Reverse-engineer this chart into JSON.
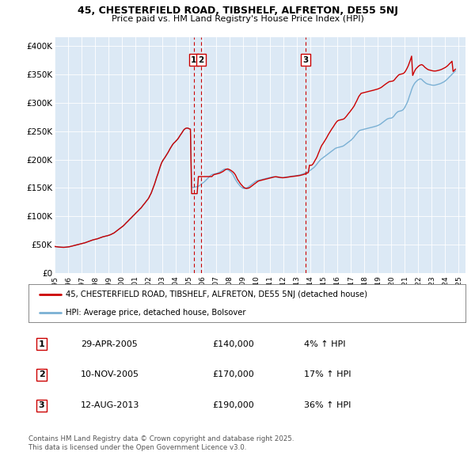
{
  "title1": "45, CHESTERFIELD ROAD, TIBSHELF, ALFRETON, DE55 5NJ",
  "title2": "Price paid vs. HM Land Registry's House Price Index (HPI)",
  "ylabel_ticks": [
    "£0",
    "£50K",
    "£100K",
    "£150K",
    "£200K",
    "£250K",
    "£300K",
    "£350K",
    "£400K"
  ],
  "ytick_vals": [
    0,
    50000,
    100000,
    150000,
    200000,
    250000,
    300000,
    350000,
    400000
  ],
  "ylim": [
    0,
    415000
  ],
  "xlim_start": 1995.0,
  "xlim_end": 2025.5,
  "bg_color": "#dce9f5",
  "red_line_color": "#cc0000",
  "blue_line_color": "#7ab0d4",
  "legend_label_red": "45, CHESTERFIELD ROAD, TIBSHELF, ALFRETON, DE55 5NJ (detached house)",
  "legend_label_blue": "HPI: Average price, detached house, Bolsover",
  "transactions": [
    {
      "num": 1,
      "date_str": "29-APR-2005",
      "price": 140000,
      "pct": "4%",
      "year": 2005.33
    },
    {
      "num": 2,
      "date_str": "10-NOV-2005",
      "price": 170000,
      "pct": "17%",
      "year": 2005.87
    },
    {
      "num": 3,
      "date_str": "12-AUG-2013",
      "price": 190000,
      "pct": "36%",
      "year": 2013.62
    }
  ],
  "footer1": "Contains HM Land Registry data © Crown copyright and database right 2025.",
  "footer2": "This data is licensed under the Open Government Licence v3.0.",
  "hpi_years": [
    1995.0,
    1995.08,
    1995.17,
    1995.25,
    1995.33,
    1995.42,
    1995.5,
    1995.58,
    1995.67,
    1995.75,
    1995.83,
    1995.92,
    1996.0,
    1996.08,
    1996.17,
    1996.25,
    1996.33,
    1996.42,
    1996.5,
    1996.58,
    1996.67,
    1996.75,
    1996.83,
    1996.92,
    1997.0,
    1997.08,
    1997.17,
    1997.25,
    1997.33,
    1997.42,
    1997.5,
    1997.58,
    1997.67,
    1997.75,
    1997.83,
    1997.92,
    1998.0,
    1998.08,
    1998.17,
    1998.25,
    1998.33,
    1998.42,
    1998.5,
    1998.58,
    1998.67,
    1998.75,
    1998.83,
    1998.92,
    1999.0,
    1999.08,
    1999.17,
    1999.25,
    1999.33,
    1999.42,
    1999.5,
    1999.58,
    1999.67,
    1999.75,
    1999.83,
    1999.92,
    2000.0,
    2000.08,
    2000.17,
    2000.25,
    2000.33,
    2000.42,
    2000.5,
    2000.58,
    2000.67,
    2000.75,
    2000.83,
    2000.92,
    2001.0,
    2001.08,
    2001.17,
    2001.25,
    2001.33,
    2001.42,
    2001.5,
    2001.58,
    2001.67,
    2001.75,
    2001.83,
    2001.92,
    2002.0,
    2002.08,
    2002.17,
    2002.25,
    2002.33,
    2002.42,
    2002.5,
    2002.58,
    2002.67,
    2002.75,
    2002.83,
    2002.92,
    2003.0,
    2003.08,
    2003.17,
    2003.25,
    2003.33,
    2003.42,
    2003.5,
    2003.58,
    2003.67,
    2003.75,
    2003.83,
    2003.92,
    2004.0,
    2004.08,
    2004.17,
    2004.25,
    2004.33,
    2004.42,
    2004.5,
    2004.58,
    2004.67,
    2004.75,
    2004.83,
    2004.92,
    2005.0,
    2005.08,
    2005.17,
    2005.25,
    2005.33,
    2005.42,
    2005.5,
    2005.58,
    2005.67,
    2005.75,
    2005.83,
    2005.92,
    2006.0,
    2006.08,
    2006.17,
    2006.25,
    2006.33,
    2006.42,
    2006.5,
    2006.58,
    2006.67,
    2006.75,
    2006.83,
    2006.92,
    2007.0,
    2007.08,
    2007.17,
    2007.25,
    2007.33,
    2007.42,
    2007.5,
    2007.58,
    2007.67,
    2007.75,
    2007.83,
    2007.92,
    2008.0,
    2008.08,
    2008.17,
    2008.25,
    2008.33,
    2008.42,
    2008.5,
    2008.58,
    2008.67,
    2008.75,
    2008.83,
    2008.92,
    2009.0,
    2009.08,
    2009.17,
    2009.25,
    2009.33,
    2009.42,
    2009.5,
    2009.58,
    2009.67,
    2009.75,
    2009.83,
    2009.92,
    2010.0,
    2010.08,
    2010.17,
    2010.25,
    2010.33,
    2010.42,
    2010.5,
    2010.58,
    2010.67,
    2010.75,
    2010.83,
    2010.92,
    2011.0,
    2011.08,
    2011.17,
    2011.25,
    2011.33,
    2011.42,
    2011.5,
    2011.58,
    2011.67,
    2011.75,
    2011.83,
    2011.92,
    2012.0,
    2012.08,
    2012.17,
    2012.25,
    2012.33,
    2012.42,
    2012.5,
    2012.58,
    2012.67,
    2012.75,
    2012.83,
    2012.92,
    2013.0,
    2013.08,
    2013.17,
    2013.25,
    2013.33,
    2013.42,
    2013.5,
    2013.58,
    2013.67,
    2013.75,
    2013.83,
    2013.92,
    2014.0,
    2014.08,
    2014.17,
    2014.25,
    2014.33,
    2014.42,
    2014.5,
    2014.58,
    2014.67,
    2014.75,
    2014.83,
    2014.92,
    2015.0,
    2015.08,
    2015.17,
    2015.25,
    2015.33,
    2015.42,
    2015.5,
    2015.58,
    2015.67,
    2015.75,
    2015.83,
    2015.92,
    2016.0,
    2016.08,
    2016.17,
    2016.25,
    2016.33,
    2016.42,
    2016.5,
    2016.58,
    2016.67,
    2016.75,
    2016.83,
    2016.92,
    2017.0,
    2017.08,
    2017.17,
    2017.25,
    2017.33,
    2017.42,
    2017.5,
    2017.58,
    2017.67,
    2017.75,
    2017.83,
    2017.92,
    2018.0,
    2018.08,
    2018.17,
    2018.25,
    2018.33,
    2018.42,
    2018.5,
    2018.58,
    2018.67,
    2018.75,
    2018.83,
    2018.92,
    2019.0,
    2019.08,
    2019.17,
    2019.25,
    2019.33,
    2019.42,
    2019.5,
    2019.58,
    2019.67,
    2019.75,
    2019.83,
    2019.92,
    2020.0,
    2020.08,
    2020.17,
    2020.25,
    2020.33,
    2020.42,
    2020.5,
    2020.58,
    2020.67,
    2020.75,
    2020.83,
    2020.92,
    2021.0,
    2021.08,
    2021.17,
    2021.25,
    2021.33,
    2021.42,
    2021.5,
    2021.58,
    2021.67,
    2021.75,
    2021.83,
    2021.92,
    2022.0,
    2022.08,
    2022.17,
    2022.25,
    2022.33,
    2022.42,
    2022.5,
    2022.58,
    2022.67,
    2022.75,
    2022.83,
    2022.92,
    2023.0,
    2023.08,
    2023.17,
    2023.25,
    2023.33,
    2023.42,
    2023.5,
    2023.58,
    2023.67,
    2023.75,
    2023.83,
    2023.92,
    2024.0,
    2024.08,
    2024.17,
    2024.25,
    2024.33,
    2024.42,
    2024.5,
    2024.58,
    2024.67,
    2024.75,
    2024.83,
    2024.92
  ],
  "hpi_vals": [
    47000,
    46800,
    46500,
    46200,
    46000,
    45800,
    45700,
    45600,
    45500,
    45600,
    45800,
    46000,
    46200,
    46500,
    47000,
    47500,
    48000,
    48500,
    49000,
    49500,
    50000,
    50500,
    51000,
    51500,
    52000,
    52500,
    53000,
    53500,
    54200,
    55000,
    55800,
    56500,
    57200,
    58000,
    58500,
    59000,
    59500,
    60000,
    60500,
    61200,
    62000,
    62800,
    63500,
    64000,
    64500,
    65000,
    65500,
    66000,
    66500,
    67200,
    68000,
    69000,
    70000,
    71000,
    72500,
    74000,
    75500,
    77000,
    78500,
    80000,
    81500,
    83000,
    85000,
    87000,
    89000,
    91000,
    93000,
    95000,
    97000,
    99000,
    101000,
    103000,
    105000,
    107000,
    109000,
    111000,
    113000,
    115000,
    117500,
    120000,
    122500,
    125000,
    127500,
    130000,
    133000,
    137000,
    141000,
    146000,
    151000,
    157000,
    163000,
    169000,
    175000,
    181000,
    187000,
    193000,
    197000,
    200000,
    203000,
    206000,
    209000,
    212500,
    216000,
    219500,
    223000,
    226000,
    228500,
    230500,
    232500,
    234500,
    237000,
    240000,
    243000,
    246000,
    249000,
    252000,
    254000,
    255000,
    255500,
    255000,
    254000,
    253500,
    152000,
    151000,
    151000,
    151500,
    152000,
    152500,
    153000,
    154000,
    155500,
    157000,
    158500,
    160000,
    162000,
    164000,
    166000,
    168000,
    170000,
    172000,
    173500,
    174000,
    174500,
    175000,
    175500,
    176000,
    177000,
    178000,
    179000,
    180500,
    182000,
    183000,
    183500,
    183000,
    182000,
    181000,
    179500,
    178000,
    176000,
    173000,
    169000,
    165000,
    162000,
    159000,
    156500,
    154000,
    152000,
    150500,
    149500,
    149000,
    149500,
    150000,
    151000,
    152500,
    154000,
    155500,
    157000,
    158500,
    160000,
    161500,
    162500,
    163000,
    163500,
    164000,
    164500,
    165000,
    165500,
    166000,
    166500,
    167000,
    167500,
    168000,
    168500,
    169000,
    169500,
    169800,
    169600,
    169200,
    168800,
    168500,
    168200,
    168000,
    168000,
    168200,
    168500,
    168800,
    169200,
    169500,
    169800,
    170000,
    170200,
    170500,
    170800,
    171000,
    171200,
    171500,
    171800,
    172200,
    172700,
    173200,
    173800,
    174500,
    175300,
    176200,
    177000,
    177800,
    178800,
    180000,
    181500,
    183000,
    184500,
    186000,
    188000,
    190500,
    193000,
    195500,
    198000,
    200000,
    201500,
    203000,
    204500,
    206000,
    207500,
    209000,
    210500,
    212000,
    213500,
    215000,
    216500,
    218000,
    219500,
    220500,
    221000,
    221500,
    222000,
    222500,
    223000,
    223800,
    225000,
    226500,
    228000,
    229500,
    231000,
    232500,
    234000,
    236000,
    238000,
    240500,
    243000,
    245500,
    248000,
    250000,
    251500,
    252000,
    252500,
    253000,
    253500,
    254000,
    254500,
    255000,
    255500,
    256000,
    256500,
    257000,
    257500,
    258000,
    258500,
    259200,
    260000,
    261000,
    262000,
    263500,
    265000,
    266500,
    268000,
    269500,
    271000,
    272000,
    272500,
    272800,
    273000,
    274000,
    276000,
    278500,
    281000,
    283000,
    284500,
    285000,
    285500,
    286000,
    287000,
    289000,
    292000,
    296000,
    300000,
    305000,
    311000,
    317000,
    323000,
    328000,
    332000,
    335000,
    337000,
    339000,
    340500,
    341500,
    342000,
    341000,
    339000,
    337000,
    335500,
    334000,
    333000,
    332500,
    332000,
    331500,
    331000,
    330800,
    330800,
    331000,
    331500,
    332000,
    332500,
    333200,
    334000,
    335000,
    336000,
    337000,
    338500,
    340000,
    342000,
    344000,
    346000,
    348000,
    350000,
    352000,
    354000,
    356000
  ],
  "red_vals": [
    47000,
    46800,
    46500,
    46200,
    46000,
    45800,
    45700,
    45600,
    45500,
    45600,
    45800,
    46000,
    46200,
    46500,
    47000,
    47500,
    48000,
    48500,
    49000,
    49500,
    50000,
    50500,
    51000,
    51500,
    52000,
    52500,
    53000,
    53500,
    54200,
    55000,
    55800,
    56500,
    57200,
    58000,
    58500,
    59000,
    59500,
    60000,
    60500,
    61200,
    62000,
    62800,
    63500,
    64000,
    64500,
    65000,
    65500,
    66000,
    66500,
    67200,
    68000,
    69000,
    70000,
    71000,
    72500,
    74000,
    75500,
    77000,
    78500,
    80000,
    81500,
    83000,
    85000,
    87000,
    89000,
    91000,
    93000,
    95000,
    97000,
    99000,
    101000,
    103000,
    105000,
    107000,
    109000,
    111000,
    113000,
    115000,
    117500,
    120000,
    122500,
    125000,
    127500,
    130000,
    133000,
    137000,
    141000,
    146000,
    151000,
    157000,
    163000,
    169000,
    175000,
    181000,
    187000,
    193000,
    197000,
    200000,
    203000,
    206000,
    209000,
    212500,
    216000,
    219500,
    223000,
    226000,
    228500,
    230500,
    232500,
    234500,
    237000,
    240000,
    243000,
    246000,
    249000,
    252000,
    254000,
    255000,
    255500,
    255000,
    254000,
    253500,
    140000,
    140000,
    140000,
    140000,
    140000,
    140000,
    170000,
    170000,
    170000,
    170000,
    170000,
    170000,
    170000,
    170000,
    170000,
    170000,
    170000,
    170000,
    170000,
    172000,
    173500,
    174000,
    174500,
    175000,
    175500,
    176000,
    177000,
    178000,
    179000,
    180500,
    182000,
    183000,
    183500,
    183000,
    182000,
    181000,
    179500,
    178000,
    176000,
    173000,
    169000,
    165000,
    162000,
    159000,
    156500,
    154000,
    152000,
    150500,
    149500,
    149000,
    149500,
    150000,
    151000,
    152500,
    154000,
    155500,
    157000,
    158500,
    160000,
    161500,
    162500,
    163000,
    163500,
    164000,
    164500,
    165000,
    165500,
    166000,
    166500,
    167000,
    167500,
    168000,
    168500,
    169000,
    169500,
    169800,
    169600,
    169200,
    168800,
    168500,
    168200,
    168000,
    168000,
    168200,
    168500,
    168800,
    169200,
    169500,
    169800,
    170000,
    170200,
    170500,
    170800,
    171000,
    171200,
    171500,
    171800,
    172200,
    172700,
    173200,
    173800,
    174500,
    175300,
    176200,
    177000,
    190000,
    190000,
    190000,
    192000,
    195000,
    198500,
    202000,
    206000,
    211000,
    216000,
    221000,
    225000,
    228000,
    231000,
    234000,
    237500,
    241000,
    244500,
    248000,
    251000,
    254000,
    257000,
    260000,
    263000,
    266000,
    268000,
    269000,
    269500,
    270000,
    270500,
    271000,
    272000,
    274000,
    276500,
    279000,
    281500,
    284000,
    286500,
    289000,
    292000,
    295000,
    299000,
    303000,
    307000,
    311000,
    314000,
    316500,
    317000,
    317500,
    318000,
    318500,
    319000,
    319500,
    320000,
    320500,
    321000,
    321500,
    322000,
    322500,
    323000,
    323500,
    324200,
    325000,
    326000,
    327000,
    328500,
    330000,
    331500,
    333000,
    334500,
    336000,
    337000,
    337500,
    337800,
    338000,
    339000,
    341000,
    343500,
    346000,
    348000,
    349500,
    350000,
    350500,
    351000,
    352000,
    354000,
    357000,
    361000,
    365000,
    370000,
    376000,
    382000,
    348000,
    353000,
    357000,
    360000,
    362000,
    364000,
    365500,
    366500,
    367000,
    366000,
    364000,
    362000,
    360500,
    359000,
    358000,
    357500,
    357000,
    356500,
    356000,
    355800,
    355800,
    356000,
    356500,
    357000,
    357500,
    358200,
    359000,
    360000,
    361000,
    362000,
    363500,
    365000,
    367000,
    369000,
    371000,
    373000,
    355000,
    357000,
    359000,
    361000
  ]
}
